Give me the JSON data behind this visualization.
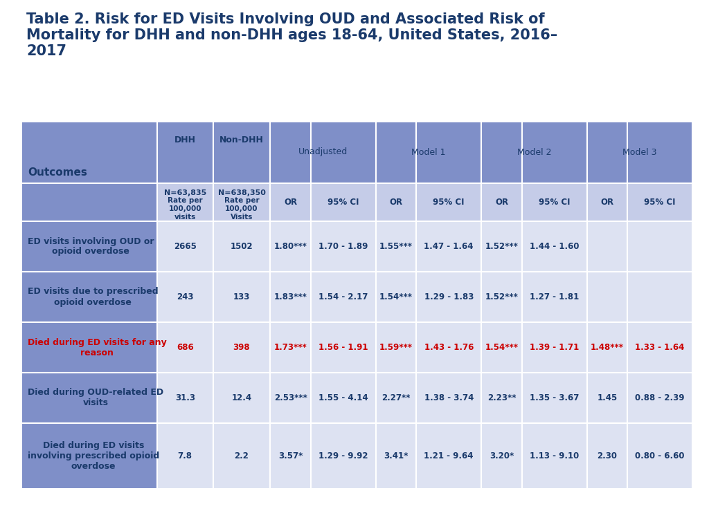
{
  "title_line1": "Table 2. Risk for ED Visits Involving OUD and Associated Risk of",
  "title_line2": "Mortality for DHH and non-DHH ages 18-64, United States, 2016–",
  "title_line3": "2017",
  "title_color": "#1a3a6b",
  "header_bg_dark": "#7f8fc8",
  "header_bg_light": "#c5cce8",
  "row_bg_dark": "#7f8fc8",
  "row_bg_light": "#dde2f2",
  "red_color": "#cc0000",
  "blue_color": "#1a3a6b",
  "rows": [
    {
      "outcome": "ED visits involving OUD or\nopioid overdose",
      "dhh": "2665",
      "non_dhh": "1502",
      "or1": "1.80***",
      "ci1": "1.70 - 1.89",
      "or2": "1.55***",
      "ci2": "1.47 - 1.64",
      "or3": "1.52***",
      "ci3": "1.44 - 1.60",
      "or4": "",
      "ci4": "",
      "highlight": false
    },
    {
      "outcome": "ED visits due to prescribed\nopioid overdose",
      "dhh": "243",
      "non_dhh": "133",
      "or1": "1.83***",
      "ci1": "1.54 - 2.17",
      "or2": "1.54***",
      "ci2": "1.29 - 1.83",
      "or3": "1.52***",
      "ci3": "1.27 - 1.81",
      "or4": "",
      "ci4": "",
      "highlight": false
    },
    {
      "outcome": "Died during ED visits for any\nreason",
      "dhh": "686",
      "non_dhh": "398",
      "or1": "1.73***",
      "ci1": "1.56 - 1.91",
      "or2": "1.59***",
      "ci2": "1.43 - 1.76",
      "or3": "1.54***",
      "ci3": "1.39 - 1.71",
      "or4": "1.48***",
      "ci4": "1.33 - 1.64",
      "highlight": true
    },
    {
      "outcome": "Died during OUD-related ED\nvisits",
      "dhh": "31.3",
      "non_dhh": "12.4",
      "or1": "2.53***",
      "ci1": "1.55 - 4.14",
      "or2": "2.27**",
      "ci2": "1.38 - 3.74",
      "or3": "2.23**",
      "ci3": "1.35 - 3.67",
      "or4": "1.45",
      "ci4": "0.88 - 2.39",
      "highlight": false
    },
    {
      "outcome": "Died during ED visits\ninvolving prescribed opioid\noverdose",
      "dhh": "7.8",
      "non_dhh": "2.2",
      "or1": "3.57*",
      "ci1": "1.29 - 9.92",
      "or2": "3.41*",
      "ci2": "1.21 - 9.64",
      "or3": "3.20*",
      "ci3": "1.13 - 9.10",
      "or4": "2.30",
      "ci4": "0.80 - 6.60",
      "highlight": false
    }
  ]
}
